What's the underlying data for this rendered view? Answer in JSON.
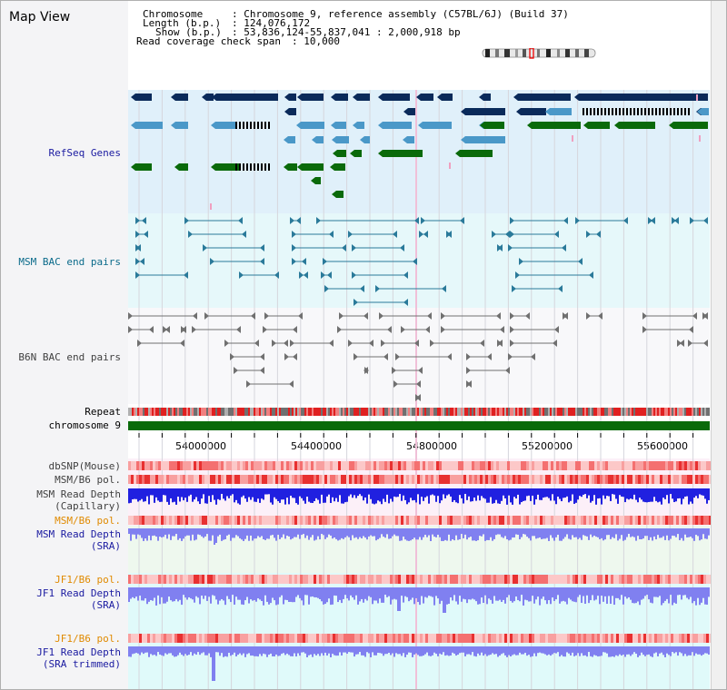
{
  "view_title": "Map View",
  "info": {
    "chromosome_label": "Chromosome",
    "chromosome_value": ": Chromosome 9, reference assembly (C57BL/6J) (Build 37)",
    "length_label": "Length (b.p.)",
    "length_value": ": 124,076,172",
    "show_label": "Show (b.p.)",
    "show_value": ": 53,836,124-55,837,041 : 2,000,918 bp",
    "coverage_label": "Read coverage check span",
    "coverage_value": ": 10,000"
  },
  "tracks": {
    "refseq": "RefSeq Genes",
    "msm_bac": "MSM BAC end pairs",
    "b6n_bac": "B6N BAC end pairs",
    "repeat": "Repeat",
    "chromosome": "chromosome 9",
    "dbsnp": "dbSNP(Mouse)",
    "msm_b6_pol": "MSM/B6 pol.",
    "msm_depth_cap_1": "MSM Read Depth",
    "msm_depth_cap_2": "(Capillary)",
    "msm_b6_pol_2": "MSM/B6 pol.",
    "msm_depth_sra_1": "MSM Read Depth",
    "msm_depth_sra_2": "(SRA)",
    "jf1_pol_1": "JF1/B6 pol.",
    "jf1_depth_sra_1": "JF1 Read Depth",
    "jf1_depth_sra_2": "(SRA)",
    "jf1_pol_2": "JF1/B6 pol.",
    "jf1_depth_trim_1": "JF1 Read Depth",
    "jf1_depth_trim_2": "(SRA trimmed)"
  },
  "axis": {
    "ticks": [
      "54000000",
      "54400000",
      "54800000",
      "55200000",
      "55600000"
    ]
  },
  "colors": {
    "refseq_dark": "#0a2a5a",
    "refseq_mid": "#4a98c8",
    "refseq_green": "#0a6a0a",
    "bac_msm": "#2a7a9a",
    "bac_b6n": "#707070",
    "chromosome": "#0a6a0a",
    "depth_blue": "#2020e0",
    "depth_light": "#8080f0",
    "label_blue": "#1a1aa0",
    "label_orange": "#e08a00",
    "label_teal": "#0a6a8a"
  }
}
